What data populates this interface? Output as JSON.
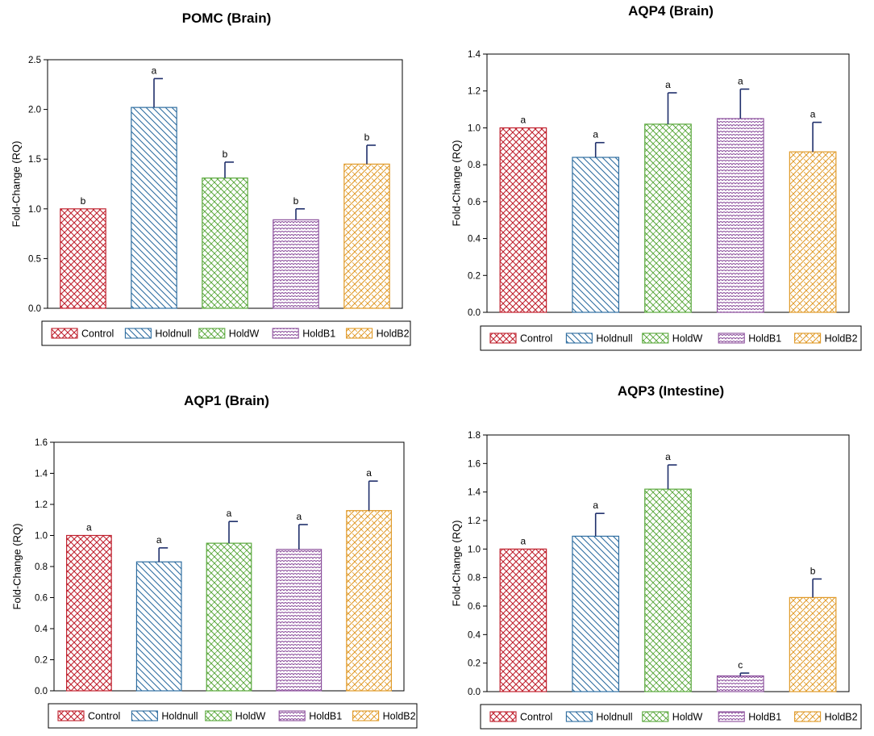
{
  "groups": [
    "Control",
    "Holdnull",
    "HoldW",
    "HoldB1",
    "HoldB2"
  ],
  "colors": {
    "Control": "#c0222f",
    "Holdnull": "#2e6da0",
    "HoldW": "#5aa83c",
    "HoldB1": "#8b4f9c",
    "HoldB2": "#e09a28",
    "error_bar": "#1f2f6b",
    "axis": "#000000"
  },
  "chart_data": [
    {
      "type": "bar",
      "title": "POMC (Brain)",
      "ylabel": "Fold-Change (RQ)",
      "xlabel": "",
      "ylim": [
        0,
        2.5
      ],
      "yticks": [
        0.0,
        0.5,
        1.0,
        1.5,
        2.0,
        2.5
      ],
      "ytick_labels": [
        "0.0",
        "0.5",
        "1.0",
        "1.5",
        "2.0",
        "2.5"
      ],
      "categories": [
        "Control",
        "Holdnull",
        "HoldW",
        "HoldB1",
        "HoldB2"
      ],
      "values": [
        1.0,
        2.02,
        1.31,
        0.89,
        1.45
      ],
      "errors": [
        0.0,
        0.29,
        0.16,
        0.11,
        0.19
      ],
      "letters": [
        "b",
        "a",
        "b",
        "b",
        "b"
      ],
      "legend": [
        "Control",
        "Holdnull",
        "HoldW",
        "HoldB1",
        "HoldB2"
      ]
    },
    {
      "type": "bar",
      "title": "AQP4 (Brain)",
      "ylabel": "Fold-Change (RQ)",
      "xlabel": "",
      "ylim": [
        0,
        1.4
      ],
      "yticks": [
        0.0,
        0.2,
        0.4,
        0.6,
        0.8,
        1.0,
        1.2,
        1.4
      ],
      "ytick_labels": [
        "0.0",
        "0.2",
        "0.4",
        "0.6",
        "0.8",
        "1.0",
        "1.2",
        "1.4"
      ],
      "categories": [
        "Control",
        "Holdnull",
        "HoldW",
        "HoldB1",
        "HoldB2"
      ],
      "values": [
        1.0,
        0.84,
        1.02,
        1.05,
        0.87
      ],
      "errors": [
        0.0,
        0.08,
        0.17,
        0.16,
        0.16
      ],
      "letters": [
        "a",
        "a",
        "a",
        "a",
        "a"
      ],
      "legend": [
        "Control",
        "Holdnull",
        "HoldW",
        "HoldB1",
        "HoldB2"
      ]
    },
    {
      "type": "bar",
      "title": "AQP1 (Brain)",
      "ylabel": "Fold-Change (RQ)",
      "xlabel": "",
      "ylim": [
        0,
        1.6
      ],
      "yticks": [
        0.0,
        0.2,
        0.4,
        0.6,
        0.8,
        1.0,
        1.2,
        1.4,
        1.6
      ],
      "ytick_labels": [
        "0.0",
        "0.2",
        "0.4",
        "0.6",
        "0.8",
        "1.0",
        "1.2",
        "1.4",
        "1.6"
      ],
      "categories": [
        "Control",
        "Holdnull",
        "HoldW",
        "HoldB1",
        "HoldB2"
      ],
      "values": [
        1.0,
        0.83,
        0.95,
        0.91,
        1.16
      ],
      "errors": [
        0.0,
        0.09,
        0.14,
        0.16,
        0.19
      ],
      "letters": [
        "a",
        "a",
        "a",
        "a",
        "a"
      ],
      "legend": [
        "Control",
        "Holdnull",
        "HoldW",
        "HoldB1",
        "HoldB2"
      ]
    },
    {
      "type": "bar",
      "title": "AQP3 (Intestine)",
      "ylabel": "Fold-Change (RQ)",
      "xlabel": "",
      "ylim": [
        0,
        1.8
      ],
      "yticks": [
        0.0,
        0.2,
        0.4,
        0.6,
        0.8,
        1.0,
        1.2,
        1.4,
        1.6,
        1.8
      ],
      "ytick_labels": [
        "0.0",
        "0.2",
        "0.4",
        "0.6",
        "0.8",
        "1.0",
        "1.2",
        "1.4",
        "1.6",
        "1.8"
      ],
      "categories": [
        "Control",
        "Holdnull",
        "HoldW",
        "HoldB1",
        "HoldB2"
      ],
      "values": [
        1.0,
        1.09,
        1.42,
        0.11,
        0.66
      ],
      "errors": [
        0.0,
        0.16,
        0.17,
        0.02,
        0.13
      ],
      "letters": [
        "a",
        "a",
        "a",
        "c",
        "b"
      ],
      "legend": [
        "Control",
        "Holdnull",
        "HoldW",
        "HoldB1",
        "HoldB2"
      ]
    }
  ]
}
